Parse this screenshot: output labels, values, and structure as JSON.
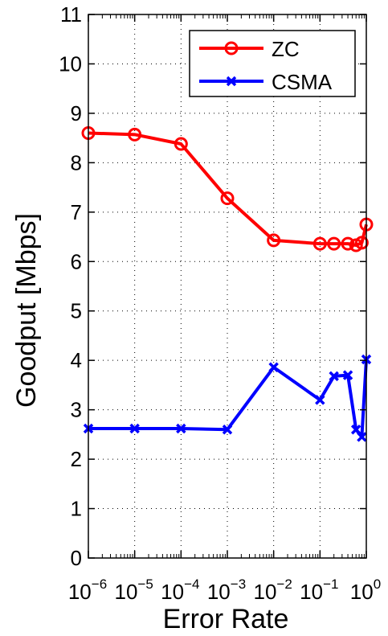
{
  "chart_data": {
    "type": "line",
    "title": "",
    "xlabel": "Error Rate",
    "ylabel": "Goodput [Mbps]",
    "xscale": "log",
    "xlim": [
      1e-06,
      1
    ],
    "ylim": [
      0,
      11
    ],
    "grid": true,
    "legend_position": "top-right",
    "x_tick_labels": [
      {
        "base": "10",
        "exp": "−6"
      },
      {
        "base": "10",
        "exp": "−5"
      },
      {
        "base": "10",
        "exp": "−4"
      },
      {
        "base": "10",
        "exp": "−3"
      },
      {
        "base": "10",
        "exp": "−2"
      },
      {
        "base": "10",
        "exp": "−1"
      },
      {
        "base": "10",
        "exp": "0"
      }
    ],
    "y_tick_labels": [
      "0",
      "1",
      "2",
      "3",
      "4",
      "5",
      "6",
      "7",
      "8",
      "9",
      "10",
      "11"
    ],
    "series": [
      {
        "name": "ZC",
        "color": "#ff0000",
        "marker": "circle",
        "x": [
          1e-06,
          1e-05,
          0.0001,
          0.001,
          0.01,
          0.1,
          0.2,
          0.4,
          0.6,
          0.8,
          1.0
        ],
        "y": [
          8.6,
          8.57,
          8.38,
          7.28,
          6.43,
          6.36,
          6.36,
          6.36,
          6.33,
          6.38,
          6.75
        ]
      },
      {
        "name": "CSMA",
        "color": "#0000ff",
        "marker": "x",
        "x": [
          1e-06,
          1e-05,
          0.0001,
          0.001,
          0.01,
          0.1,
          0.2,
          0.4,
          0.6,
          0.8,
          1.0
        ],
        "y": [
          2.62,
          2.62,
          2.62,
          2.6,
          3.86,
          3.2,
          3.68,
          3.7,
          2.6,
          2.45,
          4.02
        ]
      }
    ]
  }
}
